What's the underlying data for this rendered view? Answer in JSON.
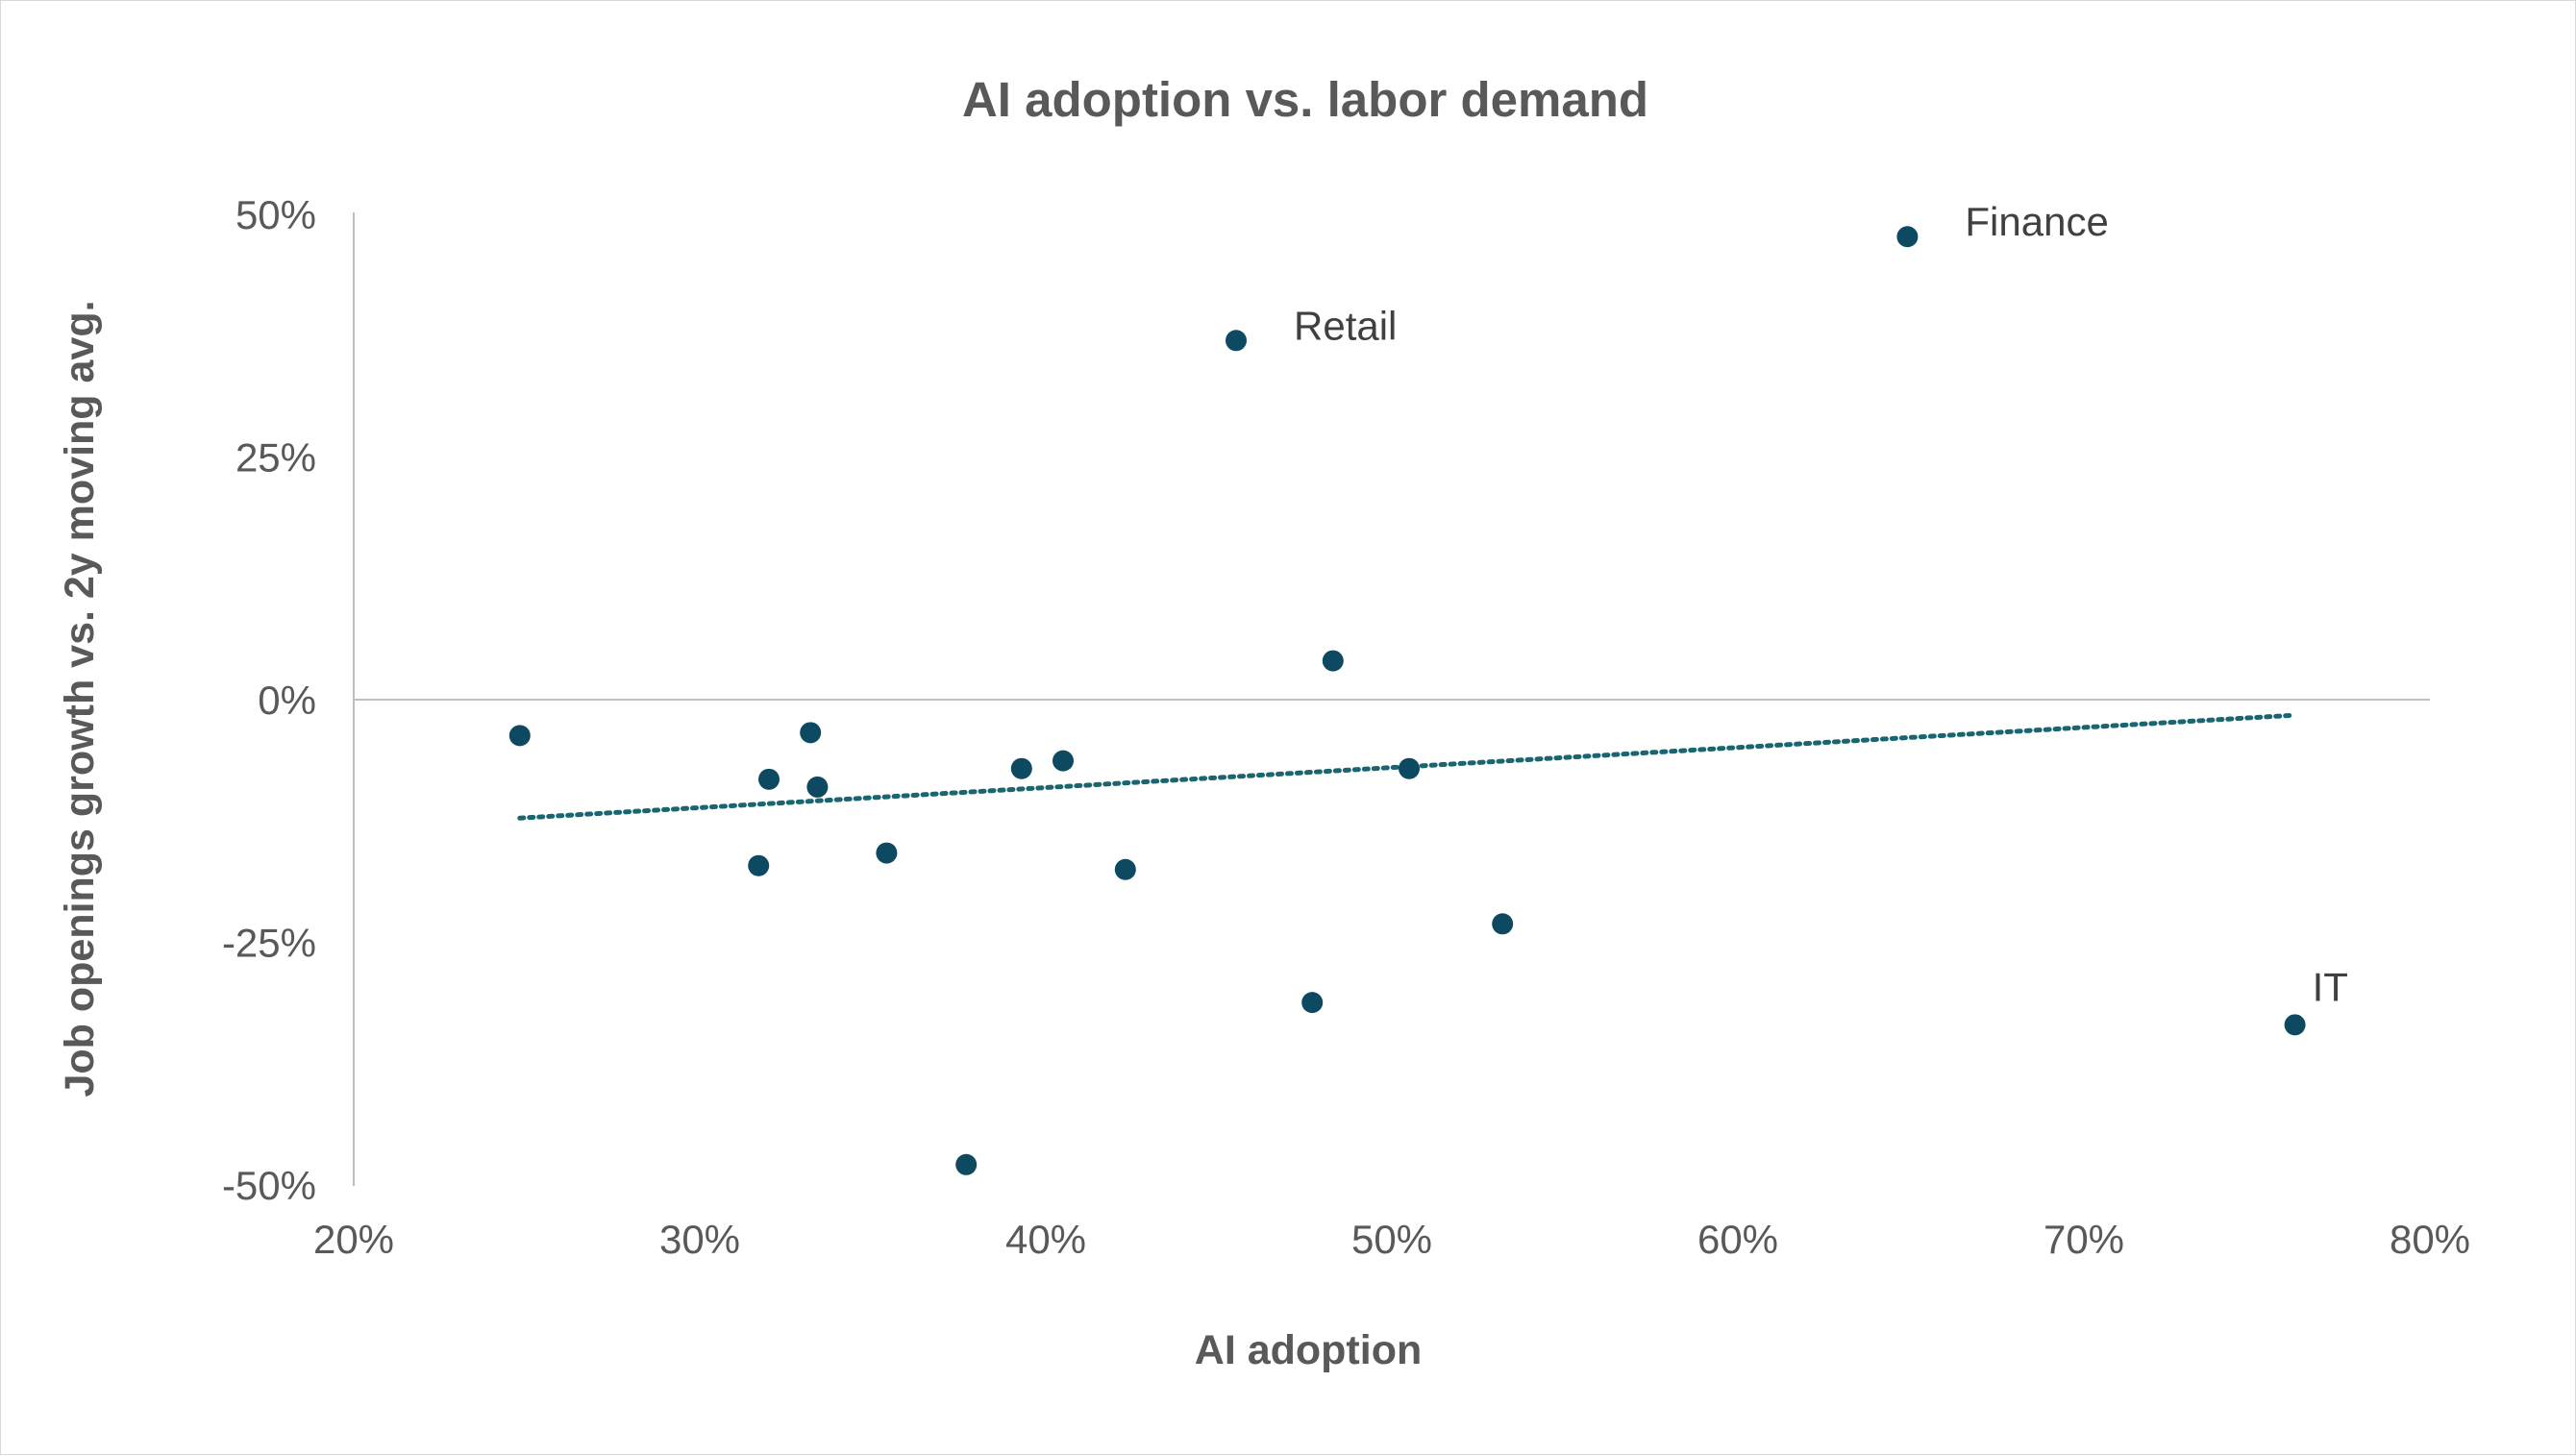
{
  "chart_data": {
    "type": "scatter",
    "title": "AI adoption vs. labor demand",
    "xlabel": "AI adoption",
    "ylabel": "Job openings growth vs. 2y moving avg.",
    "xlim": [
      0.2,
      0.8
    ],
    "ylim": [
      -0.5,
      0.5
    ],
    "x_ticks": [
      {
        "value": 0.2,
        "label": "20%"
      },
      {
        "value": 0.3,
        "label": "30%"
      },
      {
        "value": 0.4,
        "label": "40%"
      },
      {
        "value": 0.5,
        "label": "50%"
      },
      {
        "value": 0.6,
        "label": "60%"
      },
      {
        "value": 0.7,
        "label": "70%"
      },
      {
        "value": 0.8,
        "label": "80%"
      }
    ],
    "y_ticks": [
      {
        "value": 0.5,
        "label": "50%"
      },
      {
        "value": 0.25,
        "label": "25%"
      },
      {
        "value": 0.0,
        "label": "0%"
      },
      {
        "value": -0.25,
        "label": "-25%"
      },
      {
        "value": -0.5,
        "label": "-50%"
      }
    ],
    "grid": false,
    "legend": "none",
    "marker_color": "#0d4a61",
    "trendline": {
      "type": "linear",
      "style": "dotted",
      "color": "#1a6670",
      "x": [
        0.248,
        0.761
      ],
      "y": [
        -0.122,
        -0.016
      ]
    },
    "points": [
      {
        "x": 0.248,
        "y": -0.037
      },
      {
        "x": 0.317,
        "y": -0.171
      },
      {
        "x": 0.32,
        "y": -0.082
      },
      {
        "x": 0.332,
        "y": -0.034
      },
      {
        "x": 0.334,
        "y": -0.09
      },
      {
        "x": 0.354,
        "y": -0.158
      },
      {
        "x": 0.377,
        "y": -0.479
      },
      {
        "x": 0.393,
        "y": -0.071
      },
      {
        "x": 0.405,
        "y": -0.063
      },
      {
        "x": 0.423,
        "y": -0.175
      },
      {
        "x": 0.455,
        "y": 0.37,
        "label": "Retail"
      },
      {
        "x": 0.477,
        "y": -0.312
      },
      {
        "x": 0.483,
        "y": 0.04
      },
      {
        "x": 0.505,
        "y": -0.071
      },
      {
        "x": 0.532,
        "y": -0.231
      },
      {
        "x": 0.649,
        "y": 0.477,
        "label": "Finance"
      },
      {
        "x": 0.761,
        "y": -0.335,
        "label": "IT"
      }
    ]
  }
}
